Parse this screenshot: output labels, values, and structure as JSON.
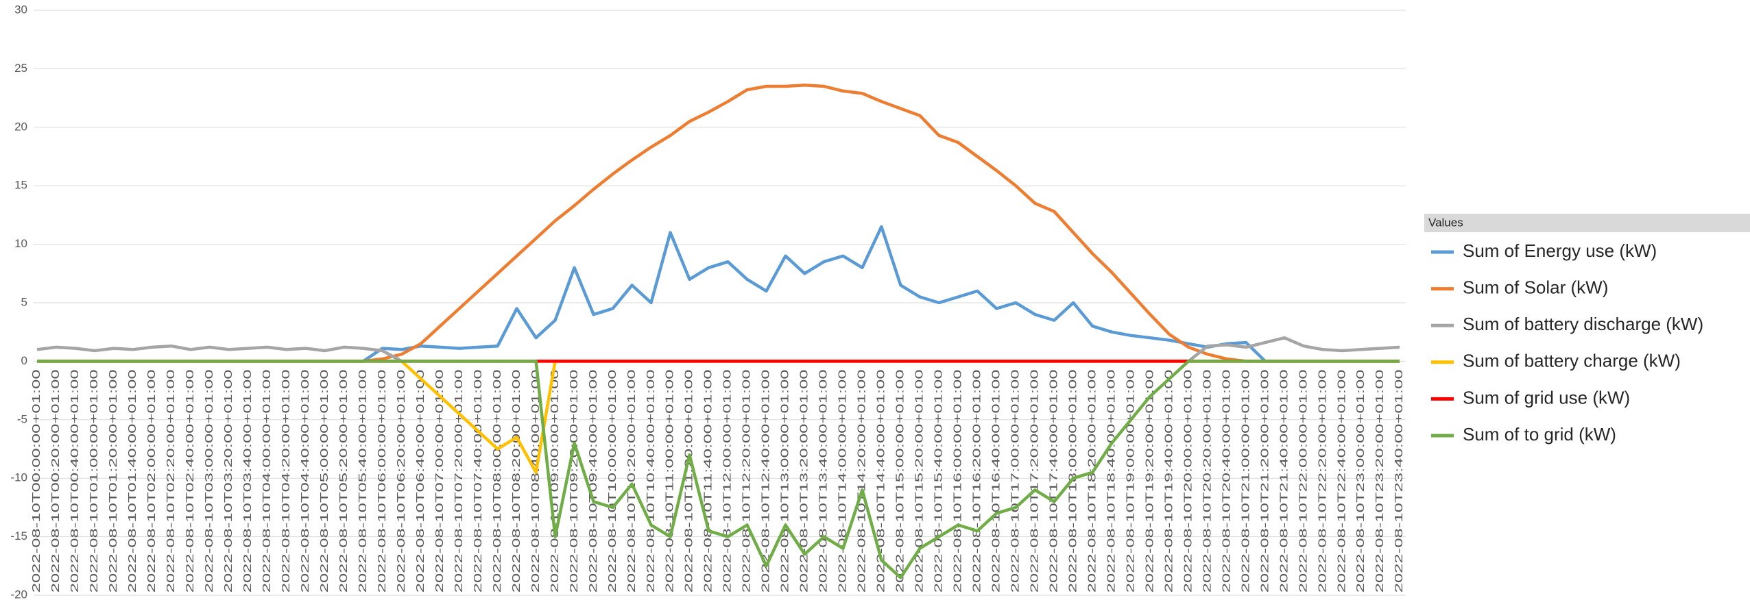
{
  "chart_data": {
    "type": "line",
    "legend_title": "Values",
    "categories": [
      "2022-08-10T00:00:00+01:00",
      "2022-08-10T00:20:00+01:00",
      "2022-08-10T00:40:00+01:00",
      "2022-08-10T01:00:00+01:00",
      "2022-08-10T01:20:00+01:00",
      "2022-08-10T01:40:00+01:00",
      "2022-08-10T02:00:00+01:00",
      "2022-08-10T02:20:00+01:00",
      "2022-08-10T02:40:00+01:00",
      "2022-08-10T03:00:00+01:00",
      "2022-08-10T03:20:00+01:00",
      "2022-08-10T03:40:00+01:00",
      "2022-08-10T04:00:00+01:00",
      "2022-08-10T04:20:00+01:00",
      "2022-08-10T04:40:00+01:00",
      "2022-08-10T05:00:00+01:00",
      "2022-08-10T05:20:00+01:00",
      "2022-08-10T05:40:00+01:00",
      "2022-08-10T06:00:00+01:00",
      "2022-08-10T06:20:00+01:00",
      "2022-08-10T06:40:00+01:00",
      "2022-08-10T07:00:00+01:00",
      "2022-08-10T07:20:00+01:00",
      "2022-08-10T07:40:00+01:00",
      "2022-08-10T08:00:00+01:00",
      "2022-08-10T08:20:00+01:00",
      "2022-08-10T08:40:00+01:00",
      "2022-08-10T09:00:00+01:00",
      "2022-08-10T09:20:00+01:00",
      "2022-08-10T09:40:00+01:00",
      "2022-08-10T10:00:00+01:00",
      "2022-08-10T10:20:00+01:00",
      "2022-08-10T10:40:00+01:00",
      "2022-08-10T11:00:00+01:00",
      "2022-08-10T11:20:00+01:00",
      "2022-08-10T11:40:00+01:00",
      "2022-08-10T12:00:00+01:00",
      "2022-08-10T12:20:00+01:00",
      "2022-08-10T12:40:00+01:00",
      "2022-08-10T13:00:00+01:00",
      "2022-08-10T13:20:00+01:00",
      "2022-08-10T13:40:00+01:00",
      "2022-08-10T14:00:00+01:00",
      "2022-08-10T14:20:00+01:00",
      "2022-08-10T14:40:00+01:00",
      "2022-08-10T15:00:00+01:00",
      "2022-08-10T15:20:00+01:00",
      "2022-08-10T15:40:00+01:00",
      "2022-08-10T16:00:00+01:00",
      "2022-08-10T16:20:00+01:00",
      "2022-08-10T16:40:00+01:00",
      "2022-08-10T17:00:00+01:00",
      "2022-08-10T17:20:00+01:00",
      "2022-08-10T17:40:00+01:00",
      "2022-08-10T18:00:00+01:00",
      "2022-08-10T18:20:00+01:00",
      "2022-08-10T18:40:00+01:00",
      "2022-08-10T19:00:00+01:00",
      "2022-08-10T19:20:00+01:00",
      "2022-08-10T19:40:00+01:00",
      "2022-08-10T20:00:00+01:00",
      "2022-08-10T20:20:00+01:00",
      "2022-08-10T20:40:00+01:00",
      "2022-08-10T21:00:00+01:00",
      "2022-08-10T21:20:00+01:00",
      "2022-08-10T21:40:00+01:00",
      "2022-08-10T22:00:00+01:00",
      "2022-08-10T22:20:00+01:00",
      "2022-08-10T22:40:00+01:00",
      "2022-08-10T23:00:00+01:00",
      "2022-08-10T23:20:00+01:00",
      "2022-08-10T23:40:00+01:00"
    ],
    "series": [
      {
        "name": "Sum of Energy use (kW)",
        "color": "#5b9bd5",
        "values": [
          0,
          0,
          0,
          0,
          0,
          0,
          0,
          0,
          0,
          0,
          0,
          0,
          0,
          0,
          0,
          0,
          0,
          0,
          1.1,
          1,
          1.3,
          1.2,
          1.1,
          1.2,
          1.3,
          4.5,
          2,
          3.5,
          8,
          4,
          4.5,
          6.5,
          5,
          11,
          7,
          8,
          8.5,
          7,
          6,
          9,
          7.5,
          8.5,
          9,
          8,
          11.5,
          6.5,
          5.5,
          5,
          5.5,
          6,
          4.5,
          5,
          4,
          3.5,
          5,
          3,
          2.5,
          2.2,
          2,
          1.8,
          1.5,
          1.2,
          1.5,
          1.6,
          0,
          0,
          0,
          0,
          0,
          0,
          0,
          0
        ]
      },
      {
        "name": "Sum of Solar (kW)",
        "color": "#ed7d31",
        "values": [
          0,
          0,
          0,
          0,
          0,
          0,
          0,
          0,
          0,
          0,
          0,
          0,
          0,
          0,
          0,
          0,
          0,
          0,
          0.2,
          0.6,
          1.5,
          3,
          4.5,
          6,
          7.5,
          9,
          10.5,
          12,
          13.3,
          14.7,
          16,
          17.2,
          18.3,
          19.3,
          20.5,
          21.3,
          22.2,
          23.2,
          23.5,
          23.5,
          23.6,
          23.5,
          23.1,
          22.9,
          22.2,
          21.6,
          21,
          19.3,
          18.7,
          17.5,
          16.3,
          15,
          13.5,
          12.8,
          11,
          9.2,
          7.6,
          5.8,
          4,
          2.3,
          1.2,
          0.6,
          0.2,
          0,
          0,
          0,
          0,
          0,
          0,
          0,
          0,
          0
        ]
      },
      {
        "name": "Sum of battery discharge (kW)",
        "color": "#a5a5a5",
        "values": [
          1,
          1.2,
          1.1,
          0.9,
          1.1,
          1,
          1.2,
          1.3,
          1,
          1.2,
          1,
          1.1,
          1.2,
          1,
          1.1,
          0.9,
          1.2,
          1.1,
          0.9,
          0,
          0,
          0,
          0,
          0,
          0,
          0,
          0,
          0,
          0,
          0,
          0,
          0,
          0,
          0,
          0,
          0,
          0,
          0,
          0,
          0,
          0,
          0,
          0,
          0,
          0,
          0,
          0,
          0,
          0,
          0,
          0,
          0,
          0,
          0,
          0,
          0,
          0,
          0,
          0,
          0,
          0,
          1.3,
          1.4,
          1.2,
          1.6,
          2,
          1.3,
          1,
          0.9,
          1,
          1.1,
          1.2
        ]
      },
      {
        "name": "Sum of battery charge (kW)",
        "color": "#ffc000",
        "values": [
          0,
          0,
          0,
          0,
          0,
          0,
          0,
          0,
          0,
          0,
          0,
          0,
          0,
          0,
          0,
          0,
          0,
          0,
          0,
          0,
          -1.5,
          -3,
          -4.5,
          -6,
          -7.5,
          -6.5,
          -9.5,
          0,
          0,
          0,
          0,
          0,
          0,
          0,
          0,
          0,
          0,
          0,
          0,
          0,
          0,
          0,
          0,
          0,
          0,
          0,
          0,
          0,
          0,
          0,
          0,
          0,
          0,
          0,
          0,
          0,
          0,
          0,
          0,
          0,
          0,
          0,
          0,
          0,
          0,
          0,
          0,
          0,
          0,
          0,
          0,
          0
        ]
      },
      {
        "name": "Sum of grid use (kW)",
        "color": "#ff0000",
        "values": [
          0,
          0,
          0,
          0,
          0,
          0,
          0,
          0,
          0,
          0,
          0,
          0,
          0,
          0,
          0,
          0,
          0,
          0,
          0,
          0,
          0,
          0,
          0,
          0,
          0,
          0,
          0,
          0,
          0,
          0,
          0,
          0,
          0,
          0,
          0,
          0,
          0,
          0,
          0,
          0,
          0,
          0,
          0,
          0,
          0,
          0,
          0,
          0,
          0,
          0,
          0,
          0,
          0,
          0,
          0,
          0,
          0,
          0,
          0,
          0,
          0,
          0,
          0,
          0,
          0,
          0,
          0,
          0,
          0,
          0,
          0,
          0
        ]
      },
      {
        "name": "Sum of to grid (kW)",
        "color": "#70ad47",
        "values": [
          0,
          0,
          0,
          0,
          0,
          0,
          0,
          0,
          0,
          0,
          0,
          0,
          0,
          0,
          0,
          0,
          0,
          0,
          0,
          0,
          0,
          0,
          0,
          0,
          0,
          0,
          0,
          -15,
          -7,
          -12,
          -12.5,
          -10.5,
          -14,
          -15,
          -8,
          -14.5,
          -15,
          -14,
          -17.5,
          -14,
          -16.5,
          -15,
          -16,
          -11,
          -17,
          -18.5,
          -16,
          -15,
          -14,
          -14.5,
          -13,
          -12.5,
          -11,
          -12,
          -10,
          -9.5,
          -7,
          -5,
          -3,
          -1.5,
          0,
          0,
          0,
          0,
          0,
          0,
          0,
          0,
          0,
          0,
          0,
          0
        ]
      }
    ],
    "ylim": [
      -20,
      30
    ],
    "yticks": [
      -20,
      -15,
      -10,
      -5,
      0,
      5,
      10,
      15,
      20,
      25,
      30
    ],
    "grid": true
  }
}
